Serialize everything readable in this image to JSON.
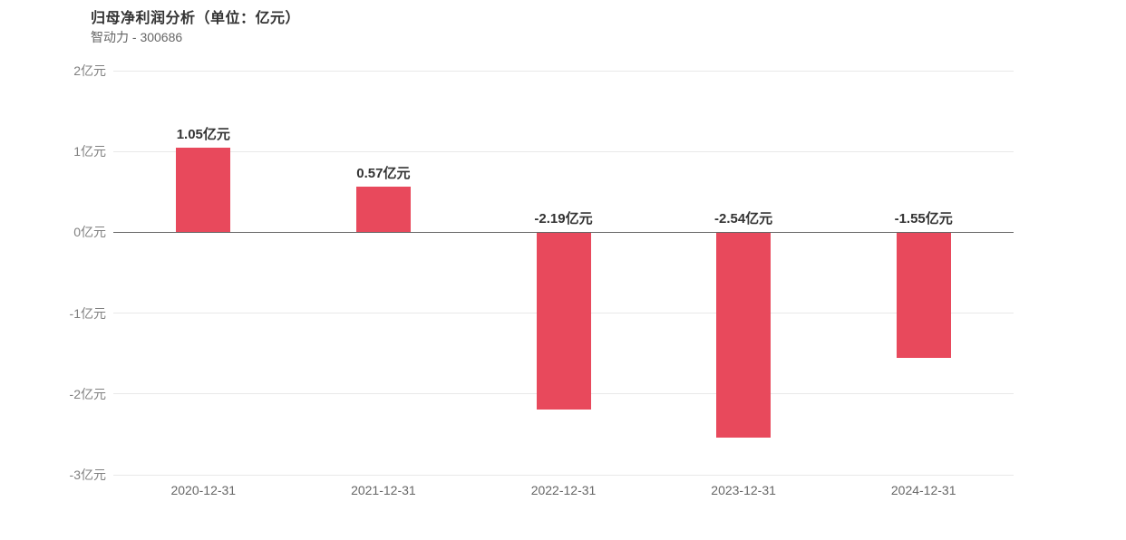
{
  "header": {
    "title": "归母净利润分析（单位：亿元）",
    "subtitle": "智动力 - 300686"
  },
  "colors": {
    "bar": "#e8495c",
    "gridline": "#e9e9e9",
    "zero_line": "#666666",
    "title_text": "#333333",
    "axis_text": "#808080",
    "x_axis_text": "#666666",
    "value_label_text": "#333333",
    "background": "#ffffff"
  },
  "chart_data": {
    "type": "bar",
    "title": "归母净利润分析（单位：亿元）",
    "subtitle": "智动力 - 300686",
    "categories": [
      "2020-12-31",
      "2021-12-31",
      "2022-12-31",
      "2023-12-31",
      "2024-12-31"
    ],
    "values": [
      1.05,
      0.57,
      -2.19,
      -2.54,
      -1.55
    ],
    "data_labels": [
      "1.05亿元",
      "0.57亿元",
      "-2.19亿元",
      "-2.54亿元",
      "-1.55亿元"
    ],
    "y_ticks": [
      {
        "value": 2,
        "label": "2亿元"
      },
      {
        "value": 1,
        "label": "1亿元"
      },
      {
        "value": 0,
        "label": "0亿元"
      },
      {
        "value": -1,
        "label": "-1亿元"
      },
      {
        "value": -2,
        "label": "-2亿元"
      },
      {
        "value": -3,
        "label": "-3亿元"
      }
    ],
    "ylim": [
      -3,
      2
    ],
    "xlabel": "",
    "ylabel": "",
    "unit": "亿元",
    "grid": true,
    "legend": false
  }
}
